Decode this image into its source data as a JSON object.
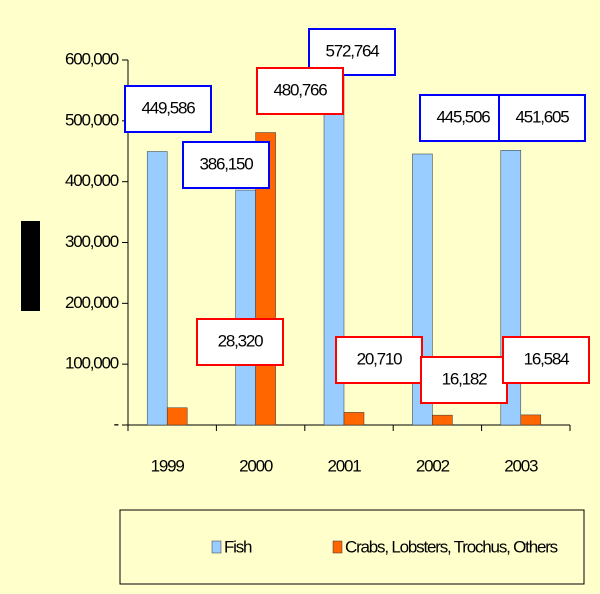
{
  "chart_data": {
    "type": "bar",
    "categories": [
      "1999",
      "2000",
      "2001",
      "2002",
      "2003"
    ],
    "series": [
      {
        "name": "Fish",
        "color": "#99ccff",
        "values": [
          449586,
          386150,
          572764,
          445506,
          451605
        ],
        "value_labels": [
          "449,586",
          "386,150",
          "572,764",
          "445,506",
          "451,605"
        ],
        "label_border": "#0000ff"
      },
      {
        "name": "Crabs, Lobsters, Trochus, Others",
        "color": "#ff6600",
        "values": [
          28320,
          480766,
          20710,
          16182,
          16584
        ],
        "value_labels": [
          "28,320",
          "480,766",
          "20,710",
          "16,182",
          "16,584"
        ],
        "label_border": "#ff0000"
      }
    ],
    "ylim": [
      0,
      600000
    ],
    "yticks": [
      {
        "value": 0,
        "label": "-"
      },
      {
        "value": 100000,
        "label": "100,000"
      },
      {
        "value": 200000,
        "label": "200,000"
      },
      {
        "value": 300000,
        "label": "300,000"
      },
      {
        "value": 400000,
        "label": "400,000"
      },
      {
        "value": 500000,
        "label": "500,000"
      },
      {
        "value": 600000,
        "label": "600,000"
      }
    ],
    "legend": "bottom"
  }
}
